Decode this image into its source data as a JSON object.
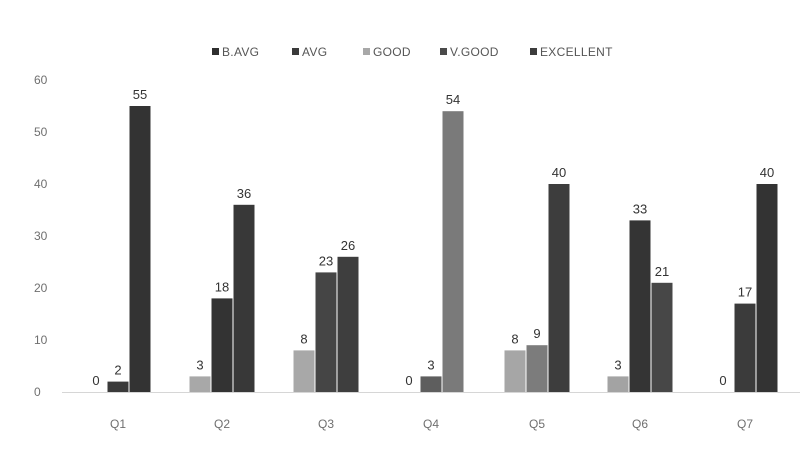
{
  "chart_data": {
    "type": "bar",
    "categories": [
      "Q1",
      "Q2",
      "Q3",
      "Q4",
      "Q5",
      "Q6",
      "Q7"
    ],
    "series": [
      {
        "name": "B.AVG",
        "color": "#2e2e2e",
        "values": [
          null,
          null,
          null,
          null,
          null,
          null,
          null
        ]
      },
      {
        "name": "AVG",
        "color": "#3a3a3a",
        "values": [
          null,
          null,
          null,
          null,
          null,
          null,
          null
        ]
      },
      {
        "name": "GOOD",
        "color": "#a8a8a8",
        "values": [
          0,
          3,
          8,
          0,
          8,
          3,
          0
        ]
      },
      {
        "name": "V.GOOD",
        "color": "#4a4a4a",
        "values": [
          2,
          18,
          23,
          3,
          9,
          33,
          17
        ]
      },
      {
        "name": "EXCELLENT",
        "color": "#3c3c3c",
        "values": [
          55,
          36,
          26,
          54,
          40,
          21,
          40
        ]
      }
    ],
    "bar_colors": [
      [
        "#a8a8a8",
        "#3a3a3a",
        "#333333"
      ],
      [
        "#a8a8a8",
        "#333333",
        "#383838"
      ],
      [
        "#a8a8a8",
        "#454545",
        "#3e3e3e"
      ],
      [
        "#a8a8a8",
        "#5e5e5e",
        "#7a7a7a"
      ],
      [
        "#a6a6a6",
        "#7c7c7c",
        "#3d3d3d"
      ],
      [
        "#a3a3a3",
        "#343434",
        "#474747"
      ],
      [
        "#a8a8a8",
        "#3b3b3b",
        "#333333"
      ]
    ],
    "ylim": [
      0,
      60
    ],
    "yticks": [
      0,
      10,
      20,
      30,
      40,
      50,
      60
    ],
    "grid": false,
    "legend_position": "top-center",
    "title": "",
    "xlabel": "",
    "ylabel": ""
  }
}
